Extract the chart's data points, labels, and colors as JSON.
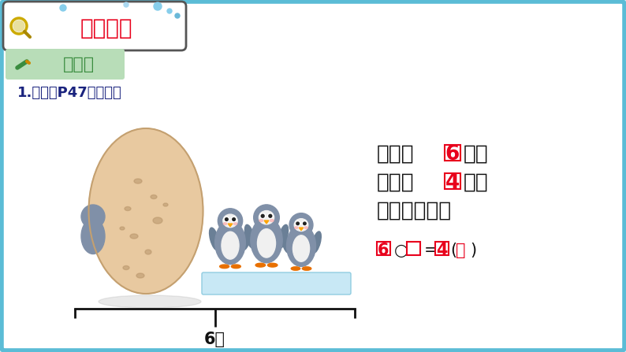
{
  "bg_color": "#d6eef7",
  "border_color": "#5bbcd6",
  "title_text": "随堂小练",
  "title_color": "#e8001c",
  "subtitle_text": "做一做",
  "subtitle_color": "#3a8c3f",
  "subtitle_bg": "#b8ddb8",
  "item_label": "1.（教材P47做一做）",
  "item_label_color": "#1a237e",
  "line1_pre": "一共有",
  "line1_num": "6",
  "line1_post": "只，",
  "line2_pre": "右边有",
  "line2_num": "4",
  "line2_post": "只。",
  "line3": "左边有几只？",
  "line4_pre": "6○□=",
  "line4_num": "4",
  "line4_post": "(只)",
  "bottom_label": "6只",
  "text_color": "#111111",
  "red_color": "#e8001c",
  "egg_color": "#e8c9a0",
  "egg_outline": "#c4a070",
  "egg_spot_color": "#b8956a",
  "penguin_body": "#8090a8",
  "penguin_belly": "#f0f0f0",
  "ice_color": "#c8e8f5",
  "brace_color": "#111111",
  "white": "#ffffff"
}
